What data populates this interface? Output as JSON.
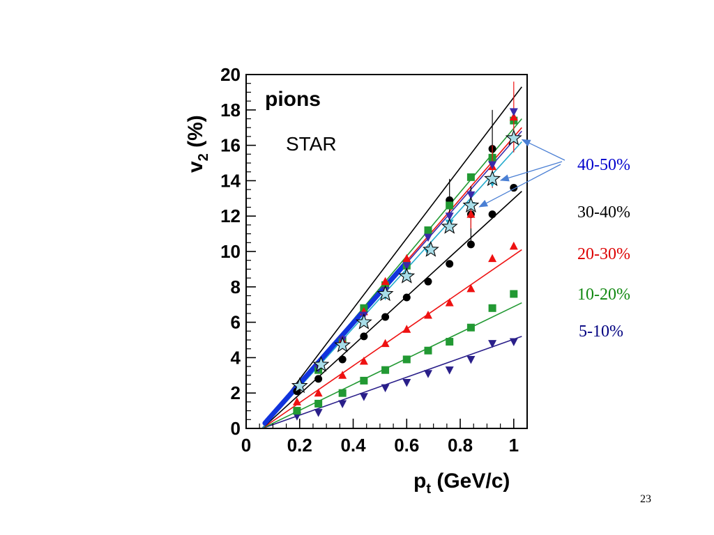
{
  "slide": {
    "page_number": "23"
  },
  "chart_data": {
    "type": "scatter",
    "xlabel_main": "p",
    "xlabel_sub": "t",
    "xlabel_rest": " (GeV/c)",
    "ylabel_main": "v",
    "ylabel_sub": "2",
    "ylabel_rest": " (%)",
    "xlim": [
      0,
      1.05
    ],
    "ylim": [
      0,
      20
    ],
    "x_ticks": [
      0,
      0.2,
      0.4,
      0.6,
      0.8,
      1
    ],
    "x_tick_labels": [
      "0",
      "0.2",
      "0.4",
      "0.6",
      "0.8",
      "1"
    ],
    "y_ticks": [
      0,
      2,
      4,
      6,
      8,
      10,
      12,
      14,
      16,
      18,
      20
    ],
    "y_tick_labels": [
      "0",
      "2",
      "4",
      "6",
      "8",
      "10",
      "12",
      "14",
      "16",
      "18",
      "20"
    ],
    "particle_label": "pions",
    "experiment_label": "STAR",
    "legend": [
      {
        "label": "40-50%",
        "color": "#0000cc"
      },
      {
        "label": "30-40%",
        "color": "#000000"
      },
      {
        "label": "20-30%",
        "color": "#dd0000"
      },
      {
        "label": "10-20%",
        "color": "#118811"
      },
      {
        "label": "5-10%",
        "color": "#000080"
      }
    ],
    "series": [
      {
        "marker": "triangle-down",
        "color": "#2a1f8a",
        "x": [
          0.19,
          0.27,
          0.36,
          0.44,
          0.52,
          0.6,
          0.68,
          0.76,
          0.84,
          0.92,
          1.0
        ],
        "y": [
          0.7,
          0.9,
          1.4,
          1.8,
          2.3,
          2.6,
          3.1,
          3.3,
          3.9,
          4.8,
          4.9
        ],
        "fit": [
          [
            0.06,
            0
          ],
          [
            1.03,
            5.2
          ]
        ]
      },
      {
        "marker": "square",
        "color": "#229933",
        "x": [
          0.19,
          0.27,
          0.36,
          0.44,
          0.52,
          0.6,
          0.68,
          0.76,
          0.84,
          0.92,
          1.0
        ],
        "y": [
          1.0,
          1.4,
          2.0,
          2.7,
          3.3,
          3.9,
          4.4,
          4.9,
          5.7,
          6.8,
          7.6
        ],
        "fit": [
          [
            0.06,
            0
          ],
          [
            1.03,
            7.1
          ]
        ]
      },
      {
        "marker": "triangle-up",
        "color": "#ee1111",
        "x": [
          0.19,
          0.27,
          0.36,
          0.44,
          0.52,
          0.6,
          0.68,
          0.76,
          0.84,
          0.92,
          1.0
        ],
        "y": [
          1.5,
          2.0,
          3.0,
          3.8,
          4.8,
          5.6,
          6.4,
          7.1,
          7.9,
          9.6,
          10.3
        ],
        "fit": [
          [
            0.06,
            0
          ],
          [
            1.03,
            10.1
          ]
        ]
      },
      {
        "marker": "circle",
        "color": "#000000",
        "x": [
          0.19,
          0.27,
          0.36,
          0.44,
          0.52,
          0.6,
          0.68,
          0.76,
          0.84,
          0.92,
          1.0
        ],
        "y": [
          2.1,
          2.8,
          3.9,
          5.2,
          6.3,
          7.4,
          8.3,
          9.3,
          10.4,
          12.1,
          13.6
        ],
        "fit": [
          [
            0.06,
            0
          ],
          [
            1.03,
            13.4
          ]
        ]
      },
      {
        "marker": "circle",
        "color": "#000000",
        "x": [
          0.76,
          0.84,
          0.92
        ],
        "y": [
          12.9,
          12.1,
          15.8
        ],
        "yerr": [
          1.2,
          1.6,
          2.2
        ],
        "fit": [
          [
            0.06,
            0
          ],
          [
            1.03,
            19.3
          ]
        ]
      },
      {
        "marker": "square",
        "color": "#229933",
        "x": [
          0.27,
          0.36,
          0.44,
          0.52,
          0.6,
          0.68,
          0.76,
          0.84,
          0.92,
          1.0
        ],
        "y": [
          3.3,
          4.9,
          6.8,
          8.1,
          9.2,
          11.2,
          12.6,
          14.2,
          15.3,
          17.4
        ],
        "fit": [
          [
            0.06,
            0
          ],
          [
            1.03,
            17.5
          ]
        ]
      },
      {
        "marker": "triangle-up",
        "color": "#ee1111",
        "x": [
          0.36,
          0.44,
          0.52,
          0.6,
          0.84,
          0.92,
          1.0
        ],
        "y": [
          5.0,
          6.6,
          8.3,
          9.6,
          12.1,
          14.8,
          17.6
        ],
        "yerr": [
          0,
          0,
          0,
          0,
          0.8,
          1.2,
          2.0
        ],
        "fit": [
          [
            0.06,
            0
          ],
          [
            1.03,
            17.0
          ]
        ]
      },
      {
        "marker": "triangle-down",
        "color": "#3a2aaa",
        "x": [
          0.27,
          0.36,
          0.44,
          0.52,
          0.6,
          0.68,
          0.76,
          0.84,
          0.92,
          1.0
        ],
        "y": [
          3.4,
          5.0,
          6.4,
          7.8,
          9.2,
          10.8,
          12.0,
          13.2,
          14.9,
          17.9
        ],
        "fit": [
          [
            0.06,
            0
          ],
          [
            1.03,
            16.8
          ]
        ]
      },
      {
        "marker": "triangle-down",
        "color": "#22aacc",
        "x": [
          0.52,
          0.6,
          0.68,
          0.76,
          0.84,
          0.92
        ],
        "y": [
          7.5,
          8.6,
          10.0,
          11.6,
          12.6,
          13.9
        ],
        "fit": [
          [
            0.06,
            0
          ],
          [
            1.03,
            16.2
          ]
        ]
      },
      {
        "marker": "star",
        "color": "#a8dde8",
        "x": [
          0.2,
          0.28,
          0.36,
          0.44,
          0.52,
          0.6,
          0.69,
          0.76,
          0.84,
          0.92,
          1.0
        ],
        "y": [
          2.4,
          3.6,
          4.7,
          6.0,
          7.6,
          8.6,
          10.1,
          11.4,
          12.6,
          14.1,
          16.4
        ]
      }
    ],
    "thick_line": {
      "color": "#1133dd",
      "points": [
        [
          0.07,
          0.3
        ],
        [
          0.6,
          9.4
        ]
      ]
    }
  }
}
